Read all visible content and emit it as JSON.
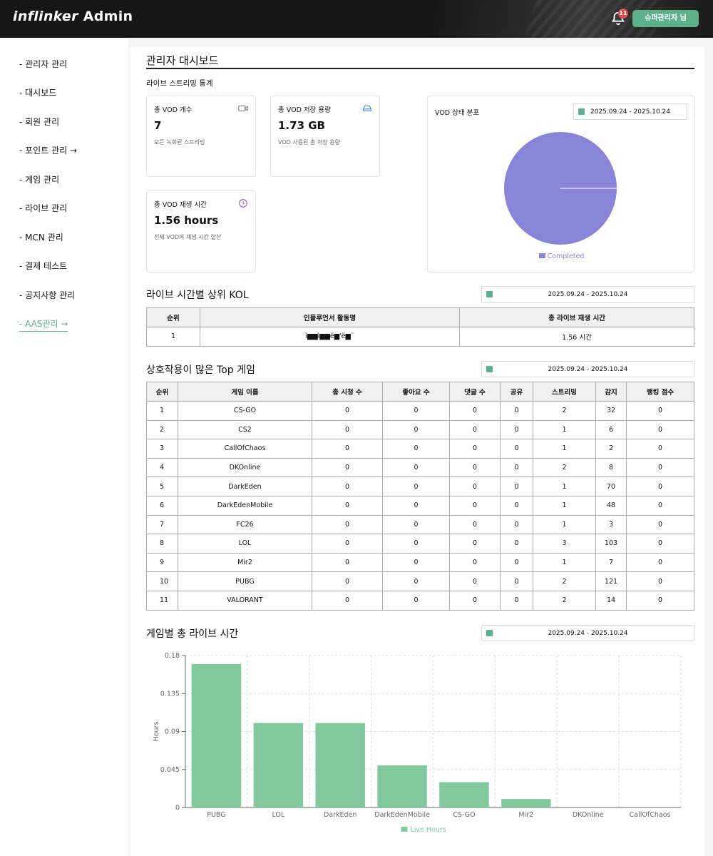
{
  "header": {
    "brand_logo": "inflinker",
    "brand_suffix": "Admin",
    "notification_count": "11",
    "user_button": "슈퍼관리자 님"
  },
  "sidebar": {
    "items": [
      {
        "label": "- 관리자 관리"
      },
      {
        "label": "- 대시보드"
      },
      {
        "label": "- 회원 관리"
      },
      {
        "label": "- 포인트 관리 →"
      },
      {
        "label": "- 게임 관리"
      },
      {
        "label": "- 라이브 관리"
      },
      {
        "label": "- MCN 관리"
      },
      {
        "label": "- 결제 테스트"
      },
      {
        "label": "- 공지사항 관리"
      },
      {
        "label": "- AAS관리 →"
      }
    ]
  },
  "page": {
    "title": "관리자 대시보드",
    "subtitle": "라이브 스트리밍 통계"
  },
  "stats": [
    {
      "label": "총 VOD 개수",
      "value": "7",
      "desc": "모든 녹화된 스트리밍",
      "icon": "video-icon"
    },
    {
      "label": "총 VOD 저장 용량",
      "value": "1.73 GB",
      "desc": "VOD 사용된 총 저장 용량",
      "icon": "storage-icon"
    },
    {
      "label": "총 VOD 재생 시간",
      "value": "1.56 hours",
      "desc": "전체 VOD의 재생 시간 합산",
      "icon": "clock-icon"
    }
  ],
  "pie": {
    "label": "VOD 상태 분포",
    "date_range": "2025.09.24 - 2025.10.24",
    "legend": "Completed",
    "color": "#8884d8"
  },
  "kol": {
    "title": "라이브 시간별 상위 KOL",
    "date_range": "2025.09.24 - 2025.10.24",
    "headers": [
      "순위",
      "인플루언서 활동명",
      "총 라이브 재생 시간"
    ],
    "rows": [
      [
        "1",
        "ì▆▆ì▆▆ë▆'ë▆¨",
        "1.56 시간"
      ]
    ]
  },
  "games": {
    "title": "상호작용이 많은 Top 게임",
    "date_range": "2025.09.24 - 2025.10.24",
    "headers": [
      "순위",
      "게임 이름",
      "총 시청 수",
      "좋아요 수",
      "댓글 수",
      "공유",
      "스트리밍",
      "감지",
      "랭킹 점수"
    ],
    "rows": [
      [
        "1",
        "CS-GO",
        "0",
        "0",
        "0",
        "0",
        "2",
        "32",
        "0"
      ],
      [
        "2",
        "CS2",
        "0",
        "0",
        "0",
        "0",
        "1",
        "6",
        "0"
      ],
      [
        "3",
        "CallOfChaos",
        "0",
        "0",
        "0",
        "0",
        "1",
        "2",
        "0"
      ],
      [
        "4",
        "DKOnline",
        "0",
        "0",
        "0",
        "0",
        "2",
        "8",
        "0"
      ],
      [
        "5",
        "DarkEden",
        "0",
        "0",
        "0",
        "0",
        "1",
        "70",
        "0"
      ],
      [
        "6",
        "DarkEdenMobile",
        "0",
        "0",
        "0",
        "0",
        "1",
        "48",
        "0"
      ],
      [
        "7",
        "FC26",
        "0",
        "0",
        "0",
        "0",
        "1",
        "3",
        "0"
      ],
      [
        "8",
        "LOL",
        "0",
        "0",
        "0",
        "0",
        "3",
        "103",
        "0"
      ],
      [
        "9",
        "Mir2",
        "0",
        "0",
        "0",
        "0",
        "1",
        "7",
        "0"
      ],
      [
        "10",
        "PUBG",
        "0",
        "0",
        "0",
        "0",
        "2",
        "121",
        "0"
      ],
      [
        "11",
        "VALORANT",
        "0",
        "0",
        "0",
        "0",
        "2",
        "14",
        "0"
      ]
    ]
  },
  "live_chart": {
    "title": "게임별 총 라이브 시간",
    "date_range": "2025.09.24 - 2025.10.24"
  },
  "chart_data": {
    "type": "bar",
    "categories": [
      "PUBG",
      "LOL",
      "DarkEden",
      "DarkEdenMobile",
      "CS-GO",
      "Mir2",
      "DKOnline",
      "CallOfChaos"
    ],
    "series": [
      {
        "name": "Live Hours",
        "values": [
          0.17,
          0.1,
          0.1,
          0.05,
          0.03,
          0.01,
          0,
          0
        ],
        "color": "#82ca9d"
      }
    ],
    "ylabel": "Hours",
    "ylim": [
      0,
      0.18
    ],
    "yticks": [
      "0",
      "0.045",
      "0.09",
      "0.135",
      "0.18"
    ],
    "grid": true,
    "legend_position": "bottom"
  },
  "colors": {
    "accent": "#5cb08a",
    "pie": "#8884d8",
    "bar": "#82ca9d"
  }
}
